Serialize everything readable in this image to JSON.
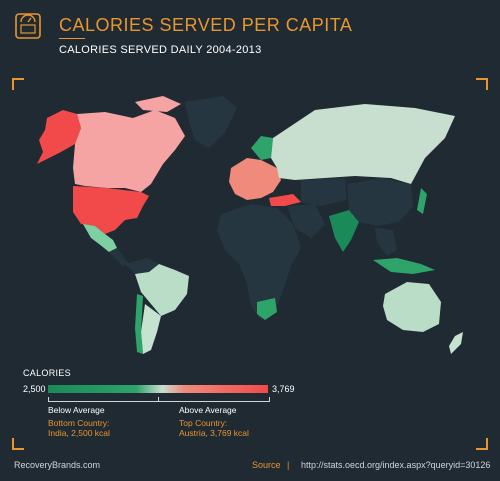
{
  "header": {
    "title": "CALORIES SERVED PER CAPITA",
    "subtitle": "CALORIES SERVED DAILY 2004-2013",
    "icon": "scale-icon"
  },
  "colors": {
    "background": "#1f2a33",
    "accent": "#e8962f",
    "high": "#f24a4a",
    "low": "#1a8a58",
    "no_data": "#253640"
  },
  "map": {
    "countries": [
      {
        "name": "United States",
        "color": "#f24a4a"
      },
      {
        "name": "Canada",
        "color": "#f6a3a3"
      },
      {
        "name": "Alaska",
        "color": "#f24a4a"
      },
      {
        "name": "Greenland",
        "color": "#253640"
      },
      {
        "name": "Mexico",
        "color": "#7ecfa2"
      },
      {
        "name": "Brazil",
        "color": "#b9ddc7"
      },
      {
        "name": "Argentina",
        "color": "#c6e3d2"
      },
      {
        "name": "Chile",
        "color": "#2ea36a"
      },
      {
        "name": "Russia",
        "color": "#c8dfd0"
      },
      {
        "name": "Europe",
        "color": "#f08a7a"
      },
      {
        "name": "Turkey",
        "color": "#f24a4a"
      },
      {
        "name": "India",
        "color": "#1a8a58"
      },
      {
        "name": "China",
        "color": "#253640"
      },
      {
        "name": "Indonesia",
        "color": "#2ea36a"
      },
      {
        "name": "Australia",
        "color": "#b9ddc7"
      },
      {
        "name": "South Africa",
        "color": "#2ea36a"
      },
      {
        "name": "New Zealand",
        "color": "#c6e3d2"
      },
      {
        "name": "Japan",
        "color": "#2ea36a"
      },
      {
        "name": "Africa",
        "color": "#253640"
      }
    ]
  },
  "legend": {
    "title": "CALORIES",
    "min": "2,500",
    "max": "3,769",
    "below_label": "Below Average",
    "above_label": "Above Average",
    "bottom_country_label": "Bottom Country:",
    "bottom_country_value": "India, 2,500 kcal",
    "top_country_label": "Top Country:",
    "top_country_value": "Austria, 3,769 kcal"
  },
  "footer": {
    "brand": "RecoveryBrands.com",
    "source_label": "Source",
    "separator": "|",
    "source_url": "http://stats.oecd.org/index.aspx?queryid=30126"
  }
}
